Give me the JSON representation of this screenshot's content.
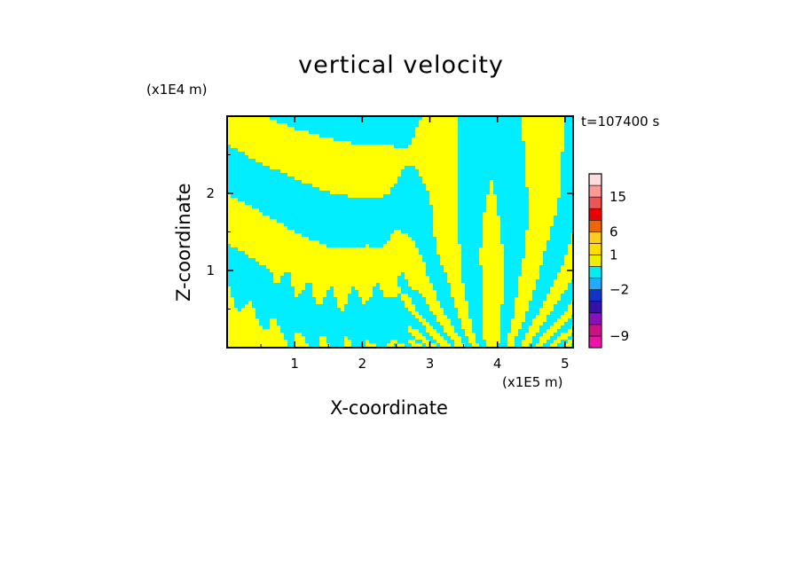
{
  "chart_data": {
    "type": "heatmap",
    "title": "vertical velocity",
    "xlabel": "X-coordinate",
    "ylabel": "Z-coordinate",
    "x_unit": "(x1E5 m)",
    "z_unit": "(x1E4 m)",
    "time_label": "t=107400 s",
    "x_ticks": [
      1,
      2,
      3,
      4,
      5
    ],
    "z_ticks": [
      1,
      2
    ],
    "xlim": [
      0,
      5.12
    ],
    "ylim": [
      0,
      3.0
    ],
    "colorbar": {
      "colors": [
        "#ee11aa",
        "#cc1188",
        "#8811bb",
        "#3311aa",
        "#1133cc",
        "#22aaff",
        "#00eeee",
        "#eeee00",
        "#ffdd00",
        "#ffcc22",
        "#ee6600",
        "#ee0000",
        "#ee5555",
        "#ff9999",
        "#ffdddd"
      ],
      "labels": [
        {
          "text": "15",
          "index": 13
        },
        {
          "text": "6",
          "index": 10
        },
        {
          "text": "1",
          "index": 8
        },
        {
          "text": "−2",
          "index": 5
        },
        {
          "text": "−9",
          "index": 1
        }
      ]
    },
    "field_colors": {
      "positive": "#ffff00",
      "negative": "#00eeff"
    }
  }
}
